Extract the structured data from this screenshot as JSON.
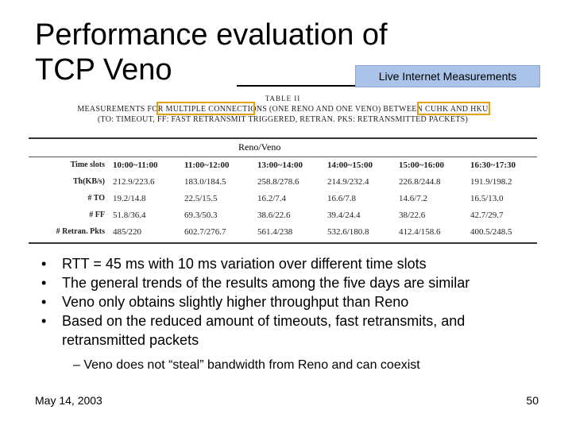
{
  "slide": {
    "title_line1": "Performance evaluation of",
    "title_line2": "TCP Veno",
    "badge": "Live Internet Measurements",
    "footer_date": "May 14, 2003",
    "page_number": "50"
  },
  "table": {
    "title": "TABLE II",
    "caption_line1": "MEASUREMENTS FOR MULTIPLE CONNECTIONS (ONE RENO AND ONE VENO) BETWEEN CUHK AND HKU",
    "caption_line2": "(TO: TIMEOUT, FF: FAST RETRANSMIT TRIGGERED, RETRAN. PKS: RETRANSMITTED PACKETS)",
    "group_header": "Reno/Veno",
    "columns": [
      "10:00~11:00",
      "11:00~12:00",
      "13:00~14:00",
      "14:00~15:00",
      "15:00~16:00",
      "16:30~17:30"
    ],
    "rows": [
      {
        "label": "Time slots",
        "values": [
          "10:00~11:00",
          "11:00~12:00",
          "13:00~14:00",
          "14:00~15:00",
          "15:00~16:00",
          "16:30~17:30"
        ]
      },
      {
        "label": "Th(KB/s)",
        "values": [
          "212.9/223.6",
          "183.0/184.5",
          "258.8/278.6",
          "214.9/232.4",
          "226.8/244.8",
          "191.9/198.2"
        ]
      },
      {
        "label": "# TO",
        "values": [
          "19.2/14.8",
          "22.5/15.5",
          "16.2/7.4",
          "16.6/7.8",
          "14.6/7.2",
          "16.5/13.0"
        ]
      },
      {
        "label": "# FF",
        "values": [
          "51.8/36.4",
          "69.3/50.3",
          "38.6/22.6",
          "39.4/24.4",
          "38/22.6",
          "42.7/29.7"
        ]
      },
      {
        "label": "# Retran. Pkts",
        "values": [
          "485/220",
          "602.7/276.7",
          "561.4/238",
          "532.6/180.8",
          "412.4/158.6",
          "400.5/248.5"
        ]
      }
    ]
  },
  "bullets": [
    "RTT = 45 ms with 10 ms variation over different time slots",
    "The general trends of the results among the five days are similar",
    "Veno only obtains slightly higher throughput than Reno",
    "Based on the reduced amount of timeouts, fast retransmits, and retransmitted packets"
  ],
  "sub_bullet": "– Veno does not “steal” bandwidth from Reno and can coexist",
  "colors": {
    "badge_bg": "#a9c4e8",
    "highlight_box": "#e2a20f"
  }
}
